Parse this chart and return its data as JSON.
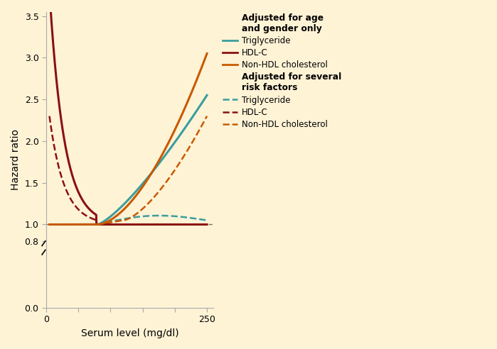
{
  "background_color": "#FFF3D6",
  "xlim": [
    0,
    260
  ],
  "ylim": [
    0.0,
    3.55
  ],
  "yticks": [
    0.0,
    0.8,
    1.0,
    1.5,
    2.0,
    2.5,
    3.0,
    3.5
  ],
  "xticks": [
    0,
    50,
    100,
    150,
    200,
    250
  ],
  "xtick_labels": [
    "0",
    "",
    "",
    "",
    "",
    "250"
  ],
  "xlabel": "Serum level (mg/dl)",
  "ylabel": "Hazard ratio",
  "colors": {
    "trig": "#3A9E9E",
    "hdl": "#8B1010",
    "nonhdl": "#C85A00"
  },
  "legend_title1": "Adjusted for age\nand gender only",
  "legend_title2": "Adjusted for several\nrisk factors",
  "legend_items1": [
    "Triglyceride",
    "HDL-C",
    "Non-HDL cholesterol"
  ],
  "legend_items2": [
    "Triglyceride",
    "HDL-C",
    "Non-HDL cholesterol"
  ],
  "ref_line_y": 1.0,
  "ref_line_color": "#556B2F"
}
